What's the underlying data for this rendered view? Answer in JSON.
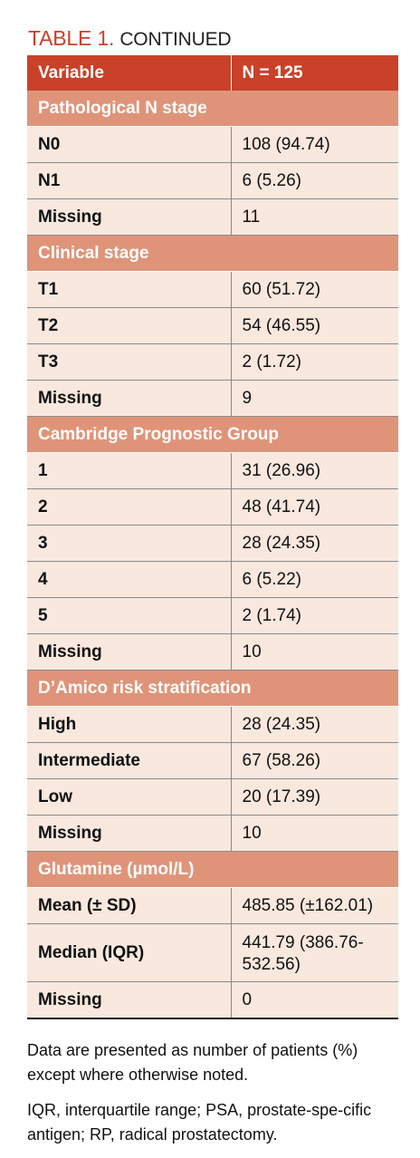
{
  "title": {
    "label": "TABLE 1.",
    "continued": "CONTINUED"
  },
  "header": {
    "col1": "Variable",
    "col2": "N = 125"
  },
  "sections": [
    {
      "title": "Pathological N stage",
      "rows": [
        {
          "variable": "N0",
          "value": "108 (94.74)"
        },
        {
          "variable": "N1",
          "value": "6 (5.26)"
        },
        {
          "variable": "Missing",
          "value": "11"
        }
      ]
    },
    {
      "title": "Clinical stage",
      "rows": [
        {
          "variable": "T1",
          "value": "60 (51.72)"
        },
        {
          "variable": "T2",
          "value": "54 (46.55)"
        },
        {
          "variable": "T3",
          "value": "2 (1.72)"
        },
        {
          "variable": "Missing",
          "value": "9"
        }
      ]
    },
    {
      "title": "Cambridge Prognostic Group",
      "rows": [
        {
          "variable": "1",
          "value": "31 (26.96)"
        },
        {
          "variable": "2",
          "value": "48 (41.74)"
        },
        {
          "variable": "3",
          "value": "28 (24.35)"
        },
        {
          "variable": "4",
          "value": "6 (5.22)"
        },
        {
          "variable": "5",
          "value": "2 (1.74)"
        },
        {
          "variable": "Missing",
          "value": "10"
        }
      ]
    },
    {
      "title": "D’Amico risk stratification",
      "rows": [
        {
          "variable": "High",
          "value": "28 (24.35)"
        },
        {
          "variable": "Intermediate",
          "value": "67 (58.26)"
        },
        {
          "variable": "Low",
          "value": "20 (17.39)"
        },
        {
          "variable": "Missing",
          "value": "10"
        }
      ]
    },
    {
      "title": "Glutamine (µmol/L)",
      "rows": [
        {
          "variable": "Mean (± SD)",
          "value": "485.85 (±162.01)"
        },
        {
          "variable": "Median (IQR)",
          "value": "441.79 (386.76-532.56)"
        },
        {
          "variable": "Missing",
          "value": "0"
        }
      ]
    }
  ],
  "notes": [
    "Data are presented as number of patients (%) except where otherwise noted.",
    "IQR, interquartile range; PSA, prostate-spe-cific antigen; RP, radical prostatectomy."
  ],
  "colors": {
    "header": "#c94128",
    "section": "#df9479",
    "row": "#f8e8de",
    "title": "#c8402a"
  }
}
